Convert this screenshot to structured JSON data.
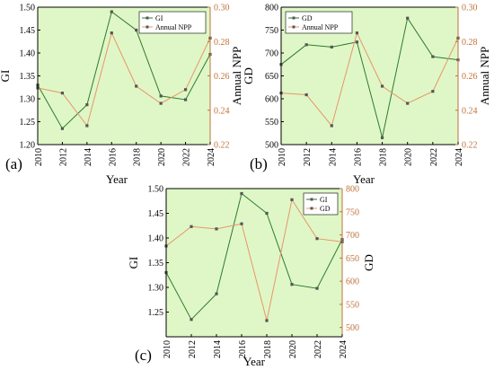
{
  "chart_data": [
    {
      "type": "line",
      "panel_label": "(a)",
      "xlabel": "Year",
      "ylabel_left": "GI",
      "ylabel_right": "Annual NPP",
      "x": [
        2010,
        2012,
        2014,
        2016,
        2018,
        2020,
        2022,
        2024
      ],
      "x_ticks": [
        "2010",
        "2012",
        "2014",
        "2016",
        "2018",
        "2020",
        "2022",
        "2024"
      ],
      "y_left_lim": [
        1.2,
        1.5
      ],
      "y_left_ticks": [
        "1.20",
        "1.25",
        "1.30",
        "1.35",
        "1.40",
        "1.45",
        "1.50"
      ],
      "y_right_lim": [
        0.22,
        0.3
      ],
      "y_right_ticks": [
        "0.22",
        "0.24",
        "0.26",
        "0.28",
        "0.30"
      ],
      "legend_position": "top-right",
      "series": [
        {
          "name": "GI",
          "axis": "left",
          "color": "#2f7a2f",
          "values": [
            1.33,
            1.235,
            1.287,
            1.49,
            1.45,
            1.306,
            1.298,
            1.397
          ]
        },
        {
          "name": "Annual NPP",
          "axis": "right",
          "color": "#e8956b",
          "values": [
            0.253,
            0.25,
            0.231,
            0.285,
            0.254,
            0.244,
            0.252,
            0.282
          ]
        }
      ]
    },
    {
      "type": "line",
      "panel_label": "(b)",
      "xlabel": "Year",
      "ylabel_left": "GD",
      "ylabel_right": "Annual NPP",
      "x": [
        2010,
        2012,
        2014,
        2016,
        2018,
        2020,
        2022,
        2024
      ],
      "x_ticks": [
        "2010",
        "2012",
        "2014",
        "2016",
        "2018",
        "2020",
        "2022",
        "2024"
      ],
      "y_left_lim": [
        500,
        800
      ],
      "y_left_ticks": [
        "500",
        "550",
        "600",
        "650",
        "700",
        "750",
        "800"
      ],
      "y_right_lim": [
        0.22,
        0.3
      ],
      "y_right_ticks": [
        "0.22",
        "0.24",
        "0.26",
        "0.28",
        "0.30"
      ],
      "legend_position": "top-left",
      "series": [
        {
          "name": "GD",
          "axis": "left",
          "color": "#2f7a2f",
          "values": [
            675,
            718,
            713,
            724,
            515,
            776,
            692,
            685
          ]
        },
        {
          "name": "Annual NPP",
          "axis": "right",
          "color": "#e8956b",
          "values": [
            0.25,
            0.249,
            0.231,
            0.285,
            0.254,
            0.244,
            0.251,
            0.282
          ]
        }
      ]
    },
    {
      "type": "line",
      "panel_label": "(c)",
      "xlabel": "Year",
      "ylabel_left": "GI",
      "ylabel_right": "GD",
      "x": [
        2010,
        2012,
        2014,
        2016,
        2018,
        2020,
        2022,
        2024
      ],
      "x_ticks": [
        "2010",
        "2012",
        "2014",
        "2016",
        "2018",
        "2020",
        "2022",
        "2024"
      ],
      "y_left_lim": [
        1.2,
        1.5
      ],
      "y_left_ticks": [
        "1.25",
        "1.30",
        "1.35",
        "1.40",
        "1.45",
        "1.50"
      ],
      "y_right_lim": [
        480,
        800
      ],
      "y_right_ticks": [
        "500",
        "550",
        "600",
        "650",
        "700",
        "750",
        "800"
      ],
      "legend_position": "top-right",
      "series": [
        {
          "name": "GI",
          "axis": "left",
          "color": "#2f7a2f",
          "values": [
            1.33,
            1.235,
            1.287,
            1.49,
            1.45,
            1.306,
            1.298,
            1.397
          ]
        },
        {
          "name": "GD",
          "axis": "right",
          "color": "#e8956b",
          "values": [
            676,
            718,
            713,
            724,
            515,
            776,
            692,
            685
          ]
        }
      ]
    }
  ],
  "colors": {
    "plot_background": "#dff7c6",
    "left_axis": "#000000",
    "right_axis": "#c0713b",
    "line_left": "#2f7a2f",
    "line_right": "#e8956b",
    "marker": "#555555"
  }
}
